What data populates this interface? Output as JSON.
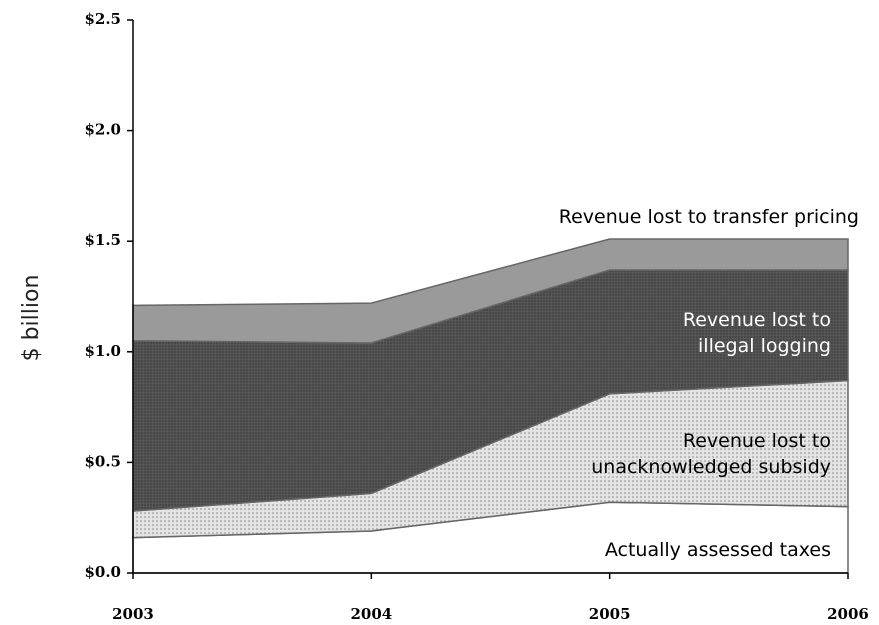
{
  "chart_data": {
    "type": "stacked_area",
    "y_label": "$ billion",
    "categories": [
      "2003",
      "2004",
      "2005",
      "2006"
    ],
    "series": [
      {
        "name": "Actually assessed taxes",
        "color": "#ffffff",
        "values": [
          0.16,
          0.19,
          0.32,
          0.3
        ]
      },
      {
        "name": "Revenue lost to unacknowledged subsidy",
        "color": "#d9d9d9",
        "values": [
          0.12,
          0.17,
          0.49,
          0.57
        ]
      },
      {
        "name": "Revenue lost to illegal logging",
        "color": "#555555",
        "values": [
          0.77,
          0.68,
          0.56,
          0.5
        ]
      },
      {
        "name": "Revenue lost to transfer pricing",
        "color": "#9a9a9a",
        "values": [
          0.16,
          0.18,
          0.14,
          0.14
        ]
      }
    ],
    "ylim": [
      0,
      2.5
    ],
    "yticks": [
      {
        "value": 0,
        "label": "$0.0"
      },
      {
        "value": 0.5,
        "label": "$0.5"
      },
      {
        "value": 1.0,
        "label": "$1.0"
      },
      {
        "value": 1.5,
        "label": "$1.5"
      },
      {
        "value": 2.0,
        "label": "$2.0"
      },
      {
        "value": 2.5,
        "label": "$2.5"
      }
    ]
  }
}
